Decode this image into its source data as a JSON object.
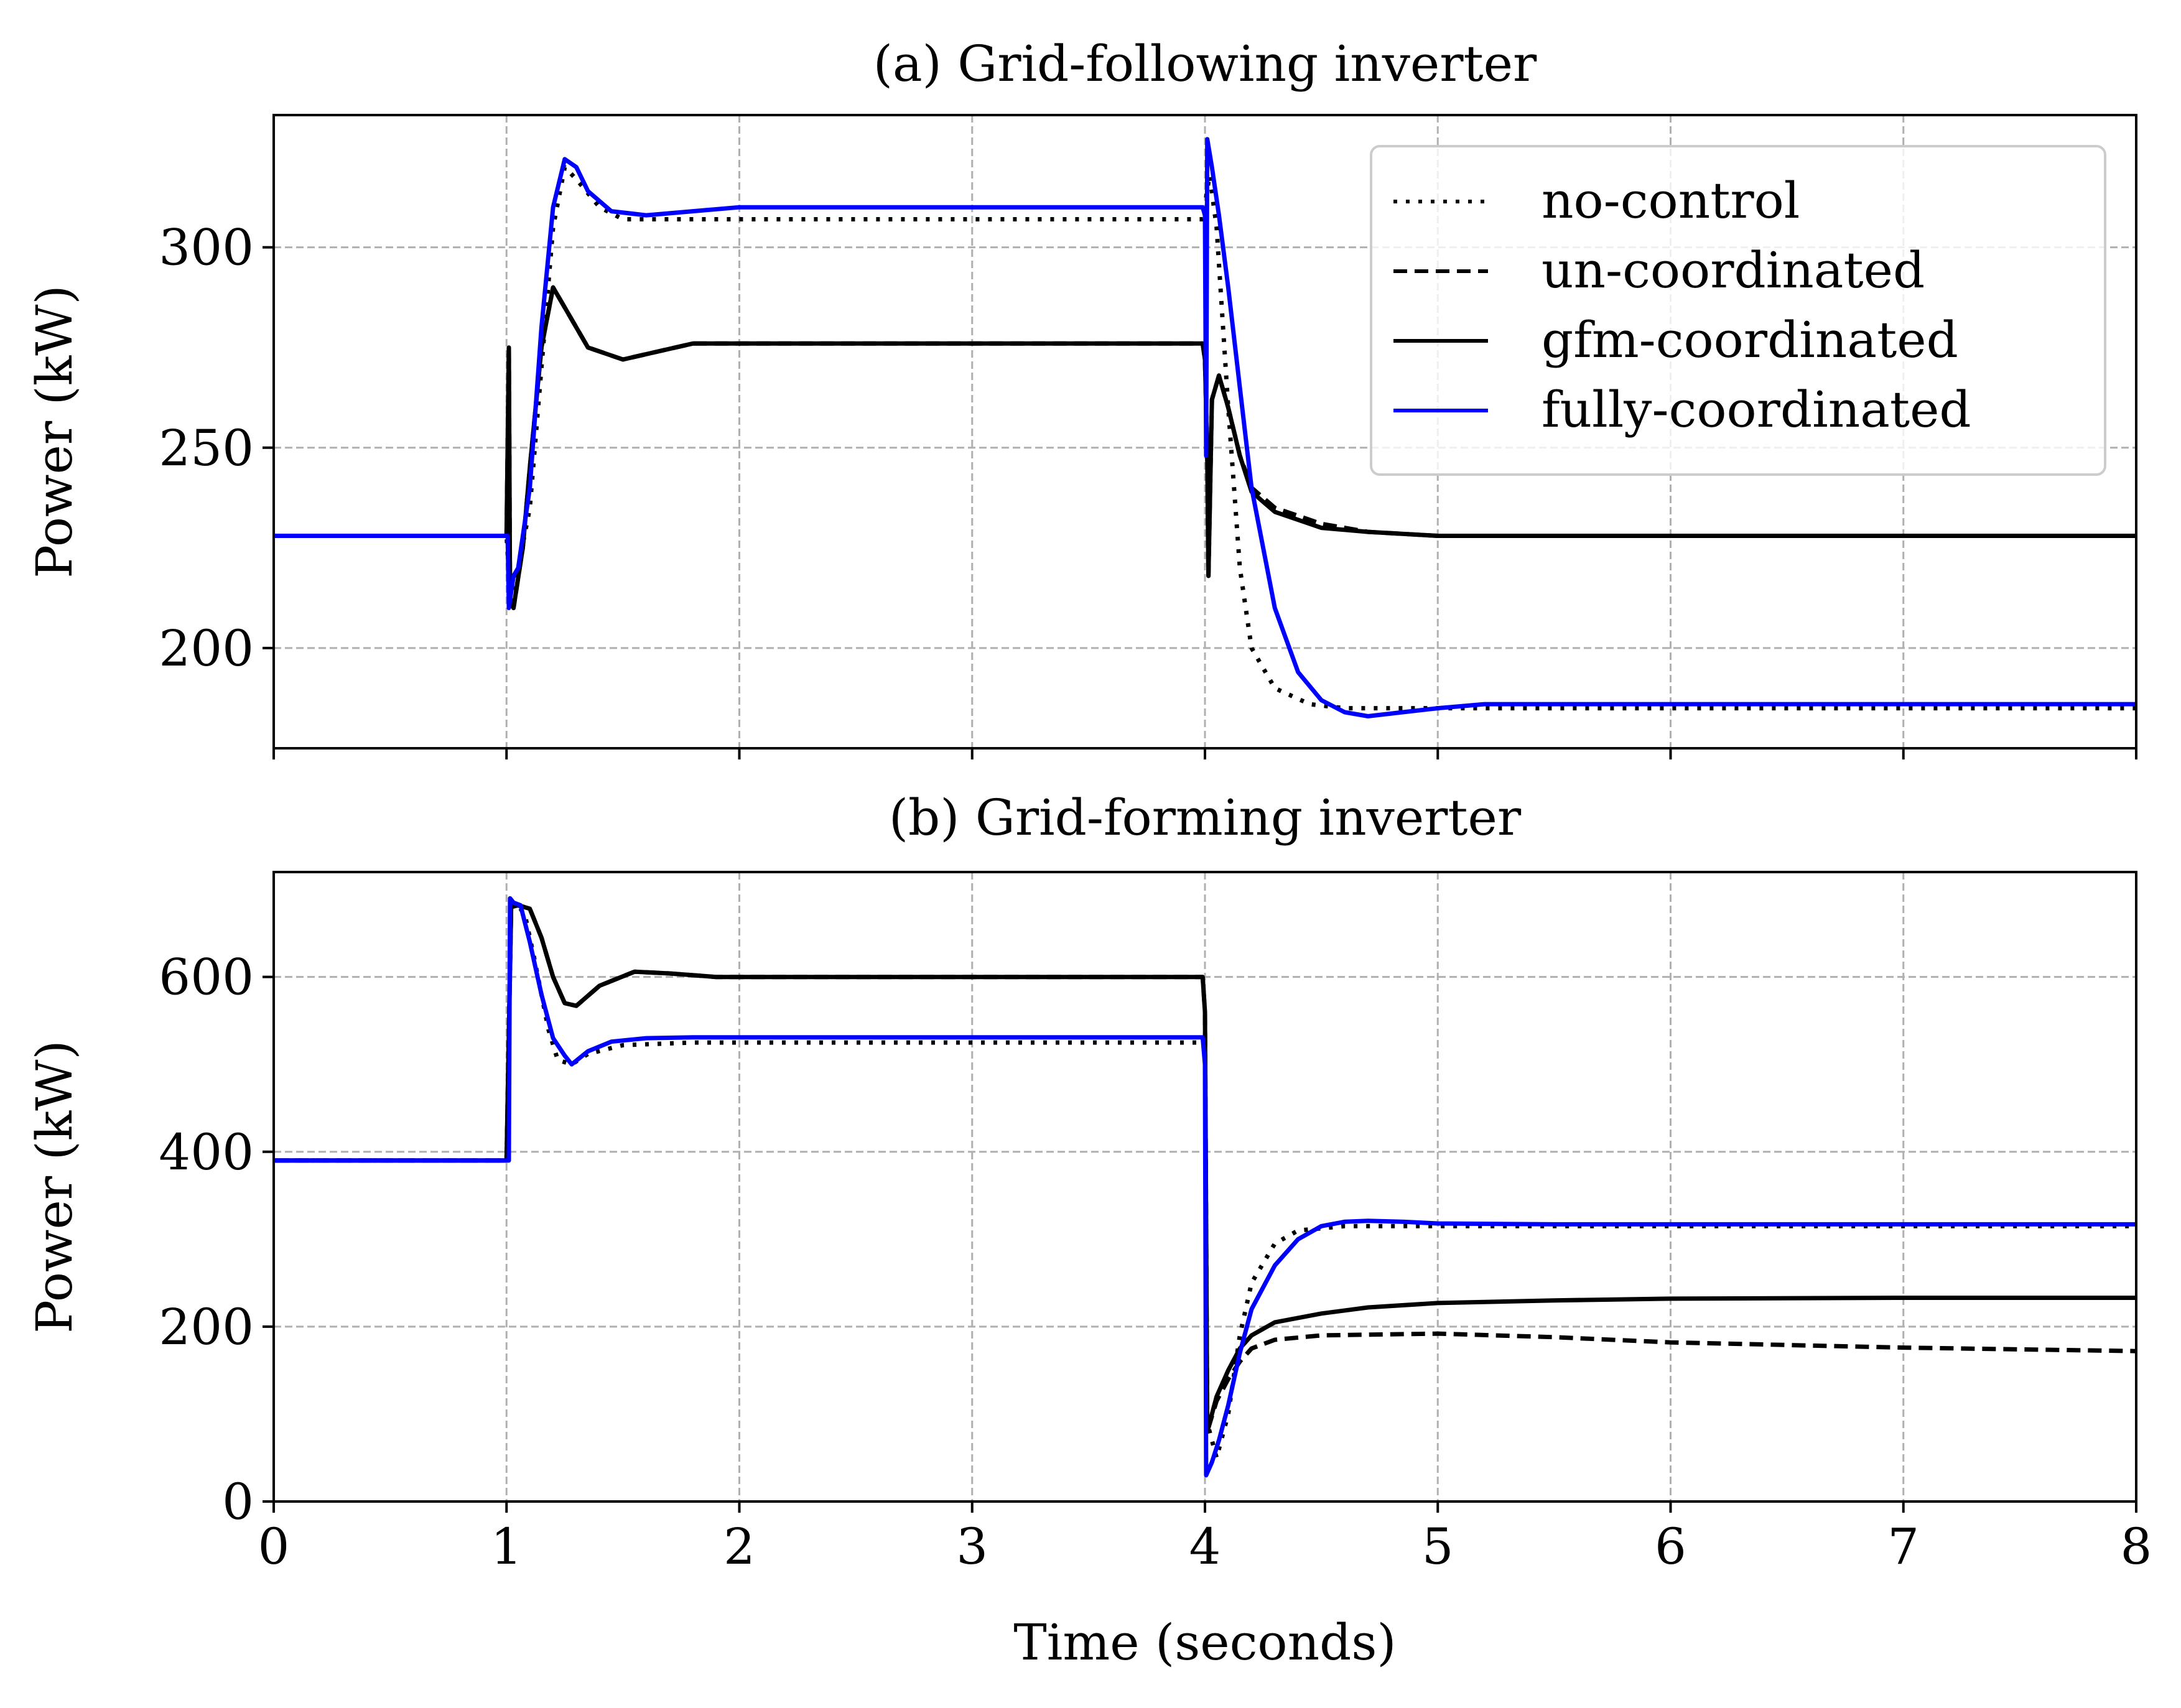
{
  "colors": {
    "background": "#ffffff",
    "axes": "#000000",
    "grid": "#b0b0b0",
    "no_control": "#000000",
    "un_coordinated": "#000000",
    "gfm_coordinated": "#000000",
    "fully_coordinated": "#0000ff",
    "legend_border": "#cccccc"
  },
  "figure": {
    "xlabel": "Time (seconds)"
  },
  "legend": {
    "placement": "top-right",
    "entries": [
      {
        "label": "no-control",
        "style": "dotted",
        "color": "#000000"
      },
      {
        "label": "un-coordinated",
        "style": "dashed",
        "color": "#000000"
      },
      {
        "label": "gfm-coordinated",
        "style": "solid",
        "color": "#000000"
      },
      {
        "label": "fully-coordinated",
        "style": "solid",
        "color": "#0000ff"
      }
    ]
  },
  "chart_data": [
    {
      "type": "line",
      "title": "(a) Grid-following inverter",
      "xlabel": "",
      "ylabel": "Power (kW)",
      "xlim": [
        0,
        8
      ],
      "ylim": [
        175,
        333
      ],
      "xticks": [
        0,
        1,
        2,
        3,
        4,
        5,
        6,
        7,
        8
      ],
      "show_xtick_labels": false,
      "yticks": [
        200,
        250,
        300
      ],
      "grid": true,
      "series": [
        {
          "name": "no-control",
          "style": "dotted",
          "color": "#000000",
          "points": [
            [
              0,
              228
            ],
            [
              1.0,
              228
            ],
            [
              1.02,
              210
            ],
            [
              1.05,
              220
            ],
            [
              1.1,
              235
            ],
            [
              1.15,
              270
            ],
            [
              1.2,
              305
            ],
            [
              1.25,
              320
            ],
            [
              1.3,
              317
            ],
            [
              1.4,
              310
            ],
            [
              1.5,
              307
            ],
            [
              1.7,
              307
            ],
            [
              2.0,
              307
            ],
            [
              3.0,
              307
            ],
            [
              3.99,
              307
            ],
            [
              4.02,
              318
            ],
            [
              4.05,
              305
            ],
            [
              4.1,
              260
            ],
            [
              4.15,
              220
            ],
            [
              4.2,
              200
            ],
            [
              4.3,
              190
            ],
            [
              4.45,
              186
            ],
            [
              4.6,
              185
            ],
            [
              5.0,
              185
            ],
            [
              6.0,
              185
            ],
            [
              7.0,
              185
            ],
            [
              8.0,
              185
            ]
          ]
        },
        {
          "name": "un-coordinated",
          "style": "dashed",
          "color": "#000000",
          "points": [
            [
              0,
              228
            ],
            [
              1.0,
              228
            ],
            [
              1.01,
              275
            ],
            [
              1.015,
              212
            ],
            [
              1.03,
              210
            ],
            [
              1.07,
              225
            ],
            [
              1.1,
              245
            ],
            [
              1.15,
              275
            ],
            [
              1.2,
              290
            ],
            [
              1.25,
              285
            ],
            [
              1.35,
              275
            ],
            [
              1.5,
              272
            ],
            [
              1.65,
              274
            ],
            [
              1.8,
              276
            ],
            [
              2.0,
              276
            ],
            [
              3.0,
              276
            ],
            [
              3.99,
              276
            ],
            [
              4.0,
              272
            ],
            [
              4.01,
              248
            ],
            [
              4.015,
              218
            ],
            [
              4.03,
              262
            ],
            [
              4.06,
              268
            ],
            [
              4.1,
              260
            ],
            [
              4.15,
              248
            ],
            [
              4.2,
              240
            ],
            [
              4.3,
              235
            ],
            [
              4.5,
              231
            ],
            [
              4.7,
              229
            ],
            [
              5.0,
              228
            ],
            [
              6.0,
              228
            ],
            [
              7.0,
              228
            ],
            [
              8.0,
              228
            ]
          ]
        },
        {
          "name": "gfm-coordinated",
          "style": "solid",
          "color": "#000000",
          "points": [
            [
              0,
              228
            ],
            [
              1.0,
              228
            ],
            [
              1.01,
              275
            ],
            [
              1.015,
              212
            ],
            [
              1.03,
              210
            ],
            [
              1.07,
              225
            ],
            [
              1.1,
              245
            ],
            [
              1.15,
              275
            ],
            [
              1.2,
              290
            ],
            [
              1.25,
              285
            ],
            [
              1.35,
              275
            ],
            [
              1.5,
              272
            ],
            [
              1.65,
              274
            ],
            [
              1.8,
              276
            ],
            [
              2.0,
              276
            ],
            [
              3.0,
              276
            ],
            [
              3.99,
              276
            ],
            [
              4.0,
              272
            ],
            [
              4.01,
              248
            ],
            [
              4.015,
              218
            ],
            [
              4.03,
              262
            ],
            [
              4.06,
              268
            ],
            [
              4.1,
              260
            ],
            [
              4.15,
              248
            ],
            [
              4.2,
              239
            ],
            [
              4.3,
              234
            ],
            [
              4.5,
              230
            ],
            [
              4.7,
              229
            ],
            [
              5.0,
              228
            ],
            [
              6.0,
              228
            ],
            [
              7.0,
              228
            ],
            [
              8.0,
              228
            ]
          ]
        },
        {
          "name": "fully-coordinated",
          "style": "solid",
          "color": "#0000ff",
          "points": [
            [
              0,
              228
            ],
            [
              1.0,
              228
            ],
            [
              1.005,
              228
            ],
            [
              1.01,
              210
            ],
            [
              1.03,
              218
            ],
            [
              1.05,
              220
            ],
            [
              1.1,
              240
            ],
            [
              1.15,
              280
            ],
            [
              1.2,
              310
            ],
            [
              1.25,
              322
            ],
            [
              1.3,
              320
            ],
            [
              1.35,
              314
            ],
            [
              1.45,
              309
            ],
            [
              1.6,
              308
            ],
            [
              1.8,
              309
            ],
            [
              2.0,
              310
            ],
            [
              3.0,
              310
            ],
            [
              3.99,
              310
            ],
            [
              4.0,
              308
            ],
            [
              4.005,
              248
            ],
            [
              4.01,
              327
            ],
            [
              4.03,
              320
            ],
            [
              4.06,
              308
            ],
            [
              4.1,
              290
            ],
            [
              4.15,
              265
            ],
            [
              4.2,
              240
            ],
            [
              4.3,
              210
            ],
            [
              4.4,
              194
            ],
            [
              4.5,
              187
            ],
            [
              4.6,
              184
            ],
            [
              4.7,
              183
            ],
            [
              4.85,
              184
            ],
            [
              5.0,
              185
            ],
            [
              5.2,
              186
            ],
            [
              5.5,
              186
            ],
            [
              6.0,
              186
            ],
            [
              7.0,
              186
            ],
            [
              8.0,
              186
            ]
          ]
        }
      ]
    },
    {
      "type": "line",
      "title": "(b) Grid-forming inverter",
      "xlabel": "Time (seconds)",
      "ylabel": "Power (kW)",
      "xlim": [
        0,
        8
      ],
      "ylim": [
        0,
        720
      ],
      "xticks": [
        0,
        1,
        2,
        3,
        4,
        5,
        6,
        7,
        8
      ],
      "show_xtick_labels": true,
      "yticks": [
        0,
        200,
        400,
        600
      ],
      "grid": true,
      "series": [
        {
          "name": "no-control",
          "style": "dotted",
          "color": "#000000",
          "points": [
            [
              0,
              390
            ],
            [
              1.0,
              390
            ],
            [
              1.02,
              680
            ],
            [
              1.05,
              682
            ],
            [
              1.08,
              670
            ],
            [
              1.12,
              620
            ],
            [
              1.18,
              540
            ],
            [
              1.22,
              505
            ],
            [
              1.28,
              500
            ],
            [
              1.35,
              512
            ],
            [
              1.5,
              522
            ],
            [
              1.8,
              525
            ],
            [
              2.0,
              525
            ],
            [
              3.0,
              525
            ],
            [
              3.99,
              525
            ],
            [
              4.0,
              520
            ],
            [
              4.01,
              90
            ],
            [
              4.05,
              50
            ],
            [
              4.1,
              100
            ],
            [
              4.15,
              190
            ],
            [
              4.2,
              250
            ],
            [
              4.3,
              295
            ],
            [
              4.4,
              310
            ],
            [
              4.6,
              315
            ],
            [
              5.0,
              315
            ],
            [
              6.0,
              315
            ],
            [
              7.0,
              315
            ],
            [
              8.0,
              315
            ]
          ]
        },
        {
          "name": "un-coordinated",
          "style": "dashed",
          "color": "#000000",
          "points": [
            [
              0,
              390
            ],
            [
              1.0,
              390
            ],
            [
              1.02,
              680
            ],
            [
              1.05,
              682
            ],
            [
              1.1,
              678
            ],
            [
              1.15,
              645
            ],
            [
              1.2,
              600
            ],
            [
              1.25,
              570
            ],
            [
              1.3,
              567
            ],
            [
              1.4,
              590
            ],
            [
              1.55,
              606
            ],
            [
              1.7,
              604
            ],
            [
              1.9,
              600
            ],
            [
              2.0,
              600
            ],
            [
              3.0,
              600
            ],
            [
              3.99,
              600
            ],
            [
              4.0,
              560
            ],
            [
              4.01,
              80
            ],
            [
              4.05,
              115
            ],
            [
              4.1,
              140
            ],
            [
              4.15,
              160
            ],
            [
              4.2,
              175
            ],
            [
              4.3,
              185
            ],
            [
              4.5,
              190
            ],
            [
              5.0,
              192
            ],
            [
              5.5,
              188
            ],
            [
              6.0,
              182
            ],
            [
              7.0,
              176
            ],
            [
              8.0,
              172
            ]
          ]
        },
        {
          "name": "gfm-coordinated",
          "style": "solid",
          "color": "#000000",
          "points": [
            [
              0,
              390
            ],
            [
              1.0,
              390
            ],
            [
              1.02,
              680
            ],
            [
              1.05,
              682
            ],
            [
              1.1,
              678
            ],
            [
              1.15,
              645
            ],
            [
              1.2,
              600
            ],
            [
              1.25,
              570
            ],
            [
              1.3,
              567
            ],
            [
              1.4,
              590
            ],
            [
              1.55,
              606
            ],
            [
              1.7,
              604
            ],
            [
              1.9,
              600
            ],
            [
              2.0,
              600
            ],
            [
              3.0,
              600
            ],
            [
              3.99,
              600
            ],
            [
              4.0,
              560
            ],
            [
              4.01,
              80
            ],
            [
              4.05,
              120
            ],
            [
              4.1,
              150
            ],
            [
              4.15,
              175
            ],
            [
              4.2,
              190
            ],
            [
              4.3,
              205
            ],
            [
              4.5,
              215
            ],
            [
              4.7,
              222
            ],
            [
              5.0,
              227
            ],
            [
              5.5,
              230
            ],
            [
              6.0,
              232
            ],
            [
              7.0,
              233
            ],
            [
              8.0,
              233
            ]
          ]
        },
        {
          "name": "fully-coordinated",
          "style": "solid",
          "color": "#0000ff",
          "points": [
            [
              0,
              390
            ],
            [
              1.0,
              390
            ],
            [
              1.01,
              390
            ],
            [
              1.015,
              690
            ],
            [
              1.03,
              685
            ],
            [
              1.06,
              682
            ],
            [
              1.1,
              640
            ],
            [
              1.15,
              580
            ],
            [
              1.2,
              530
            ],
            [
              1.25,
              510
            ],
            [
              1.28,
              500
            ],
            [
              1.35,
              515
            ],
            [
              1.45,
              526
            ],
            [
              1.6,
              530
            ],
            [
              1.8,
              531
            ],
            [
              2.0,
              531
            ],
            [
              3.0,
              531
            ],
            [
              3.99,
              531
            ],
            [
              4.0,
              500
            ],
            [
              4.005,
              30
            ],
            [
              4.03,
              45
            ],
            [
              4.06,
              70
            ],
            [
              4.1,
              110
            ],
            [
              4.15,
              170
            ],
            [
              4.2,
              220
            ],
            [
              4.3,
              270
            ],
            [
              4.4,
              300
            ],
            [
              4.5,
              315
            ],
            [
              4.6,
              320
            ],
            [
              4.7,
              321
            ],
            [
              4.85,
              320
            ],
            [
              5.0,
              318
            ],
            [
              5.5,
              317
            ],
            [
              6.0,
              317
            ],
            [
              7.0,
              317
            ],
            [
              8.0,
              317
            ]
          ]
        }
      ]
    }
  ]
}
